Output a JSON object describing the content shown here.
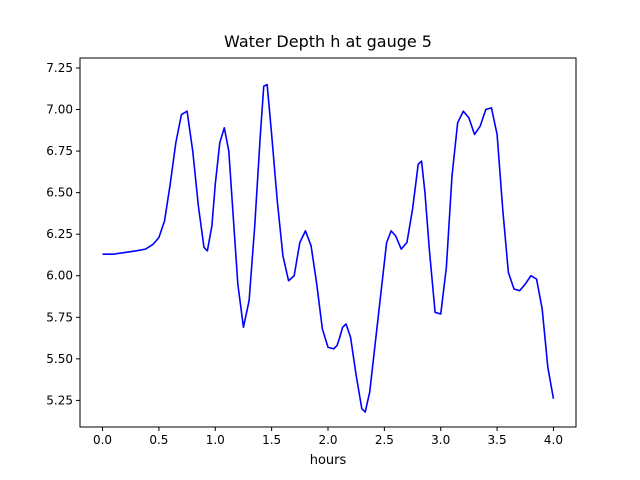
{
  "chart_data": {
    "type": "line",
    "title": "Water Depth h at gauge 5",
    "xlabel": "hours",
    "ylabel": "",
    "xlim": [
      -0.2,
      4.2
    ],
    "ylim": [
      5.09,
      7.31
    ],
    "xticks": [
      0.0,
      0.5,
      1.0,
      1.5,
      2.0,
      2.5,
      3.0,
      3.5,
      4.0
    ],
    "xtick_labels": [
      "0.0",
      "0.5",
      "1.0",
      "1.5",
      "2.0",
      "2.5",
      "3.0",
      "3.5",
      "4.0"
    ],
    "yticks": [
      5.25,
      5.5,
      5.75,
      6.0,
      6.25,
      6.5,
      6.75,
      7.0,
      7.25
    ],
    "ytick_labels": [
      "5.25",
      "5.50",
      "5.75",
      "6.00",
      "6.25",
      "6.50",
      "6.75",
      "7.00",
      "7.25"
    ],
    "grid": false,
    "series": [
      {
        "color": "#0000ff",
        "x": [
          0.0,
          0.1,
          0.2,
          0.3,
          0.38,
          0.45,
          0.5,
          0.55,
          0.6,
          0.65,
          0.7,
          0.75,
          0.8,
          0.85,
          0.9,
          0.93,
          0.97,
          1.0,
          1.04,
          1.08,
          1.12,
          1.16,
          1.2,
          1.25,
          1.3,
          1.35,
          1.4,
          1.43,
          1.46,
          1.5,
          1.55,
          1.6,
          1.65,
          1.7,
          1.75,
          1.8,
          1.85,
          1.9,
          1.95,
          2.0,
          2.05,
          2.08,
          2.1,
          2.13,
          2.16,
          2.2,
          2.25,
          2.3,
          2.33,
          2.37,
          2.42,
          2.47,
          2.52,
          2.56,
          2.6,
          2.65,
          2.7,
          2.75,
          2.8,
          2.83,
          2.86,
          2.9,
          2.95,
          3.0,
          3.05,
          3.1,
          3.15,
          3.2,
          3.25,
          3.3,
          3.35,
          3.4,
          3.45,
          3.5,
          3.55,
          3.6,
          3.65,
          3.7,
          3.75,
          3.8,
          3.85,
          3.9,
          3.95,
          4.0
        ],
        "y": [
          6.13,
          6.13,
          6.14,
          6.15,
          6.16,
          6.19,
          6.23,
          6.33,
          6.55,
          6.8,
          6.97,
          6.99,
          6.75,
          6.42,
          6.17,
          6.15,
          6.3,
          6.55,
          6.8,
          6.89,
          6.75,
          6.35,
          5.95,
          5.69,
          5.85,
          6.3,
          6.85,
          7.14,
          7.15,
          6.85,
          6.45,
          6.12,
          5.97,
          6.0,
          6.2,
          6.27,
          6.18,
          5.95,
          5.68,
          5.57,
          5.56,
          5.58,
          5.62,
          5.69,
          5.71,
          5.63,
          5.4,
          5.2,
          5.18,
          5.3,
          5.6,
          5.9,
          6.2,
          6.27,
          6.24,
          6.16,
          6.2,
          6.4,
          6.67,
          6.69,
          6.5,
          6.15,
          5.78,
          5.77,
          6.05,
          6.6,
          6.92,
          6.99,
          6.95,
          6.85,
          6.9,
          7.0,
          7.01,
          6.85,
          6.4,
          6.02,
          5.92,
          5.91,
          5.95,
          6.0,
          5.98,
          5.8,
          5.45,
          5.26
        ]
      }
    ]
  }
}
